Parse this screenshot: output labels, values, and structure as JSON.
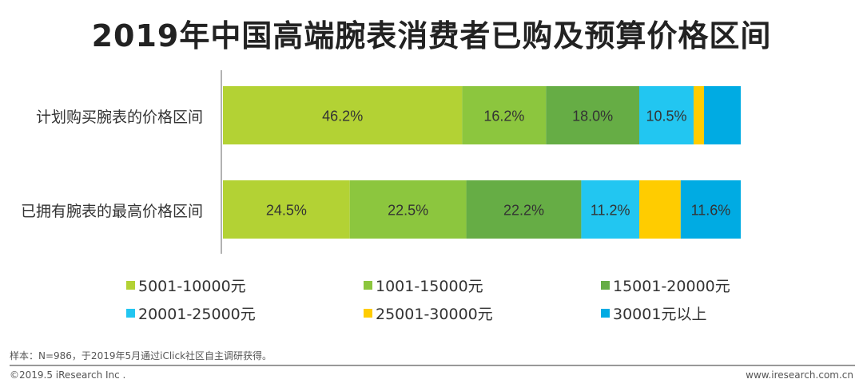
{
  "chart_data": {
    "type": "stacked-bar-horizontal",
    "title": "2019年中国高端腕表消费者已购及预算价格区间",
    "categories": [
      "计划购买腕表的价格区间",
      "已拥有腕表的最高价格区间"
    ],
    "unit": "%",
    "xlim": [
      0,
      100
    ],
    "grid": false,
    "legend_position": "bottom",
    "series": [
      {
        "name": "5001-10000元",
        "color": "#b3d234",
        "values": [
          46.2,
          24.5
        ],
        "labels": [
          "46.2%",
          "24.5%"
        ]
      },
      {
        "name": "1001-15000元",
        "color": "#8cc63e",
        "values": [
          16.2,
          22.5
        ],
        "labels": [
          "16.2%",
          "22.5%"
        ]
      },
      {
        "name": "15001-20000元",
        "color": "#66ad45",
        "values": [
          18.0,
          22.2
        ],
        "labels": [
          "18.0%",
          "22.2%"
        ]
      },
      {
        "name": "20001-25000元",
        "color": "#22c6f1",
        "values": [
          10.5,
          11.2
        ],
        "labels": [
          "10.5%",
          "11.2%"
        ]
      },
      {
        "name": "25001-30000元",
        "color": "#ffcc00",
        "values": [
          2.0,
          8.0
        ],
        "labels": [
          "",
          ""
        ]
      },
      {
        "name": "30001元以上",
        "color": "#00abe3",
        "values": [
          7.1,
          11.6
        ],
        "labels": [
          "",
          "11.6%"
        ]
      }
    ]
  },
  "footer": {
    "note": "样本：N=986，于2019年5月通过iClick社区自主调研获得。",
    "copyright": "©2019.5 iResearch Inc .",
    "website": "www.iresearch.com.cn"
  }
}
